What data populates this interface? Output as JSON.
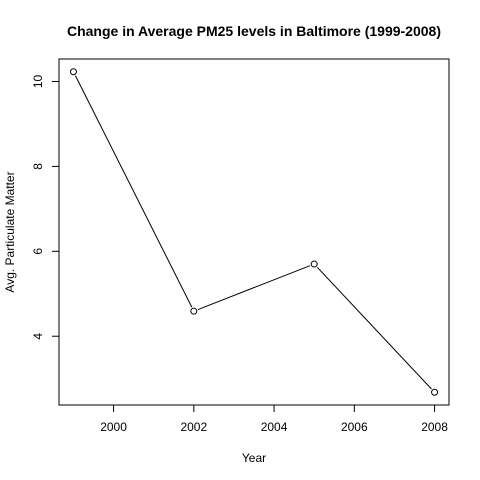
{
  "chart_data": {
    "type": "line",
    "title": "Change in Average PM25 levels in Baltimore (1999-2008)",
    "xlabel": "Year",
    "ylabel": "Avg. Particulate Matter",
    "x": [
      1999,
      2002,
      2005,
      2008
    ],
    "series": [
      {
        "values": [
          10.23,
          4.59,
          5.7,
          2.68
        ]
      }
    ],
    "xticks": [
      2000,
      2002,
      2004,
      2006,
      2008
    ],
    "yticks": [
      4,
      6,
      8,
      10
    ],
    "xlim": [
      1998.64,
      2008.36
    ],
    "ylim": [
      2.38,
      10.53
    ],
    "marker": "open-circle",
    "line_color": "#000000",
    "grid": false,
    "legend": "none"
  }
}
